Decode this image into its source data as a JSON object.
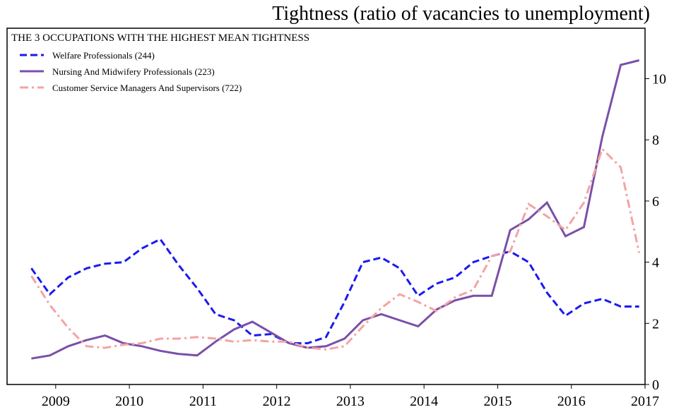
{
  "chart_data": {
    "type": "line",
    "title": "Tightness (ratio of vacancies to unemployment)",
    "legend_title": "THE 3 OCCUPATIONS WITH THE HIGHEST MEAN TIGHTNESS",
    "legend": "upper left",
    "x": [
      2008.67,
      2008.92,
      2009.17,
      2009.42,
      2009.67,
      2009.92,
      2010.17,
      2010.42,
      2010.67,
      2010.92,
      2011.17,
      2011.42,
      2011.67,
      2011.92,
      2012.17,
      2012.42,
      2012.67,
      2012.92,
      2013.17,
      2013.42,
      2013.67,
      2013.92,
      2014.17,
      2014.42,
      2014.67,
      2014.92,
      2015.17,
      2015.42,
      2015.67,
      2015.92,
      2016.17,
      2016.42,
      2016.67,
      2016.92
    ],
    "series": [
      {
        "name": "Welfare Professionals (244)",
        "color": "#1a1af0",
        "linestyle": "dashed",
        "values": [
          3.8,
          2.95,
          3.5,
          3.8,
          3.95,
          4.0,
          4.45,
          4.75,
          3.9,
          3.15,
          2.3,
          2.1,
          1.6,
          1.65,
          1.35,
          1.35,
          1.55,
          2.7,
          4.0,
          4.15,
          3.8,
          2.9,
          3.3,
          3.5,
          4.0,
          4.2,
          4.35,
          4.0,
          3.0,
          2.25,
          2.65,
          2.8,
          2.55,
          2.55
        ]
      },
      {
        "name": "Nursing And Midwifery Professionals (223)",
        "color": "#7a4fa8",
        "linestyle": "solid",
        "values": [
          0.85,
          0.95,
          1.25,
          1.45,
          1.6,
          1.35,
          1.25,
          1.1,
          1.0,
          0.95,
          1.4,
          1.8,
          2.05,
          1.7,
          1.35,
          1.2,
          1.25,
          1.5,
          2.1,
          2.3,
          2.1,
          1.9,
          2.45,
          2.75,
          2.9,
          2.9,
          5.05,
          5.4,
          5.95,
          4.85,
          5.15,
          8.1,
          10.45,
          10.6
        ]
      },
      {
        "name": "Customer Service Managers And Supervisors (722)",
        "color": "#f4a3a3",
        "linestyle": "dashdot",
        "values": [
          3.55,
          2.6,
          1.85,
          1.25,
          1.2,
          1.3,
          1.35,
          1.5,
          1.5,
          1.55,
          1.5,
          1.4,
          1.45,
          1.4,
          1.4,
          1.2,
          1.15,
          1.25,
          1.9,
          2.5,
          2.95,
          2.7,
          2.4,
          2.85,
          3.1,
          4.2,
          4.35,
          5.9,
          5.5,
          5.05,
          5.95,
          7.7,
          7.1,
          4.3
        ]
      }
    ],
    "xlim": [
      2008.34,
      2017.0
    ],
    "xticks": [
      2009,
      2010,
      2011,
      2012,
      2013,
      2014,
      2015,
      2016,
      2017
    ],
    "ylim": [
      0,
      11.65
    ],
    "yticks": [
      0,
      2,
      4,
      6,
      8,
      10
    ],
    "y_axis_side": "right"
  }
}
